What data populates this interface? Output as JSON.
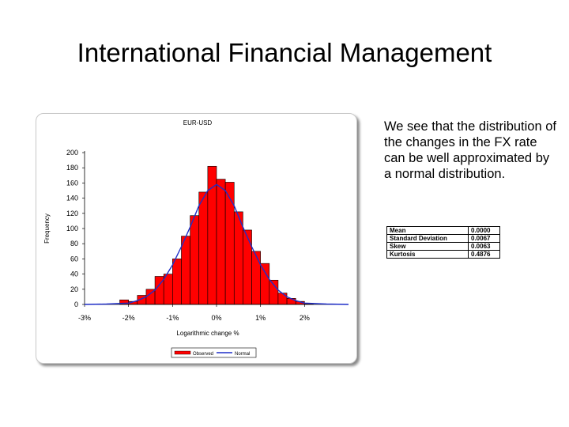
{
  "slide": {
    "title": "International Financial Management",
    "body_text": "We see that the distribution of the changes in the FX rate can be well approximated by a normal distribution."
  },
  "stats_table": [
    {
      "label": "Mean",
      "value": "0.0000"
    },
    {
      "label": "Standard Deviation",
      "value": "0.0067"
    },
    {
      "label": "Skew",
      "value": "0.0063"
    },
    {
      "label": "Kurtosis",
      "value": "0.4876"
    }
  ],
  "colors": {
    "bars": "#ff0000",
    "normal_curve": "#1f2ec8"
  },
  "chart_data": {
    "type": "bar",
    "title": "EUR-USD",
    "xlabel": "Logarithmic change %",
    "ylabel": "Frequency",
    "ylim": [
      0,
      200
    ],
    "xlim": [
      -3,
      3
    ],
    "yticks": [
      "0",
      "20",
      "40",
      "60",
      "80",
      "100",
      "120",
      "140",
      "160",
      "180",
      "200"
    ],
    "xtick_values": [
      -3,
      -2,
      -1,
      0,
      1,
      2
    ],
    "xticks": [
      "-3%",
      "-2%",
      "-1%",
      "0%",
      "1%",
      "2%"
    ],
    "grid": false,
    "legend": "bottom",
    "bin_width": 0.2,
    "series": [
      {
        "name": "Observed",
        "kind": "bar",
        "x": [
          -2.1,
          -1.9,
          -1.7,
          -1.5,
          -1.3,
          -1.1,
          -0.9,
          -0.7,
          -0.5,
          -0.3,
          -0.1,
          0.1,
          0.3,
          0.5,
          0.7,
          0.9,
          1.1,
          1.3,
          1.5,
          1.7,
          1.9,
          2.1
        ],
        "values": [
          6,
          4,
          12,
          20,
          37,
          40,
          60,
          90,
          117,
          148,
          182,
          165,
          161,
          122,
          98,
          70,
          54,
          32,
          15,
          8,
          4,
          1
        ]
      },
      {
        "name": "Normal",
        "kind": "line",
        "x": [
          -3,
          -2.5,
          -2,
          -1.8,
          -1.6,
          -1.4,
          -1.2,
          -1,
          -0.8,
          -0.6,
          -0.4,
          -0.2,
          0,
          0.2,
          0.4,
          0.6,
          0.8,
          1,
          1.2,
          1.4,
          1.6,
          1.8,
          2,
          2.5,
          3
        ],
        "values": [
          0,
          0.5,
          1.8,
          5,
          10,
          19,
          33,
          52,
          76,
          102,
          130,
          150,
          158,
          150,
          130,
          102,
          76,
          52,
          33,
          19,
          10,
          5,
          1.8,
          0.5,
          0
        ]
      }
    ]
  }
}
